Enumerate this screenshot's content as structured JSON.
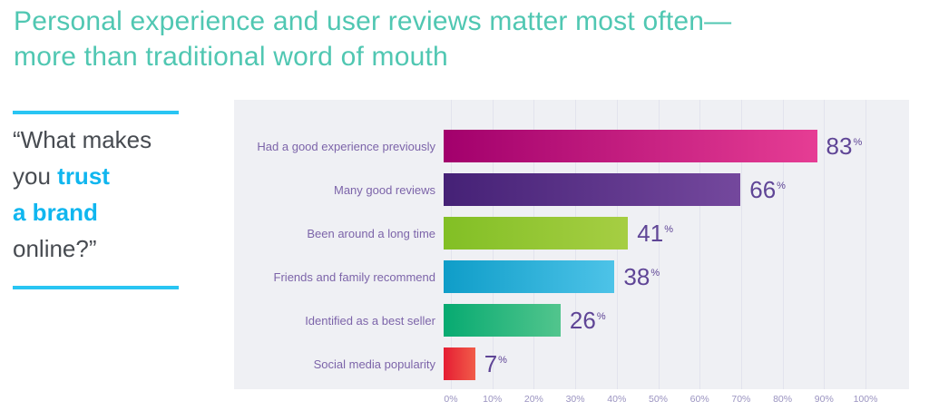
{
  "title": {
    "line1": "Personal experience and user reviews matter most often—",
    "line2": "more than traditional word of mouth"
  },
  "quote": {
    "line1": "“What makes",
    "line2_prefix": "you ",
    "line2_highlight": "trust",
    "line3_highlight": "a brand",
    "line4": "online?”"
  },
  "chart_data": {
    "type": "bar",
    "orientation": "horizontal",
    "title": "What makes you trust a brand online?",
    "categories": [
      "Had a good experience previously",
      "Many good reviews",
      "Been around a long time",
      "Friends and family recommend",
      "Identified as a best seller",
      "Social media popularity"
    ],
    "values": [
      83,
      66,
      41,
      38,
      26,
      7
    ],
    "unit": "%",
    "x_ticks": [
      "0%",
      "10%",
      "20%",
      "30%",
      "40%",
      "50%",
      "60%",
      "70%",
      "80%",
      "90%",
      "100%"
    ],
    "xlim": [
      0,
      100
    ],
    "grid": true,
    "legend": false,
    "bar_gradients": [
      {
        "from": "#a2006c",
        "to": "#e63d94"
      },
      {
        "from": "#452176",
        "to": "#74489d"
      },
      {
        "from": "#82bf25",
        "to": "#a6ce43"
      },
      {
        "from": "#0f9dc8",
        "to": "#4dc3e8"
      },
      {
        "from": "#07aa71",
        "to": "#52c58d"
      },
      {
        "from": "#e51d33",
        "to": "#f15c49"
      }
    ]
  },
  "colors": {
    "title_teal": "#50c7b2",
    "quote_text": "#474b51",
    "quote_highlight": "#10b6ef",
    "rule_cyan": "#29c5f3",
    "panel_bg": "#eff0f4",
    "gridline": "#e2e3ed",
    "category_label": "#7c64a9",
    "value_label": "#5f4596",
    "tick_label": "#9a93c0"
  }
}
